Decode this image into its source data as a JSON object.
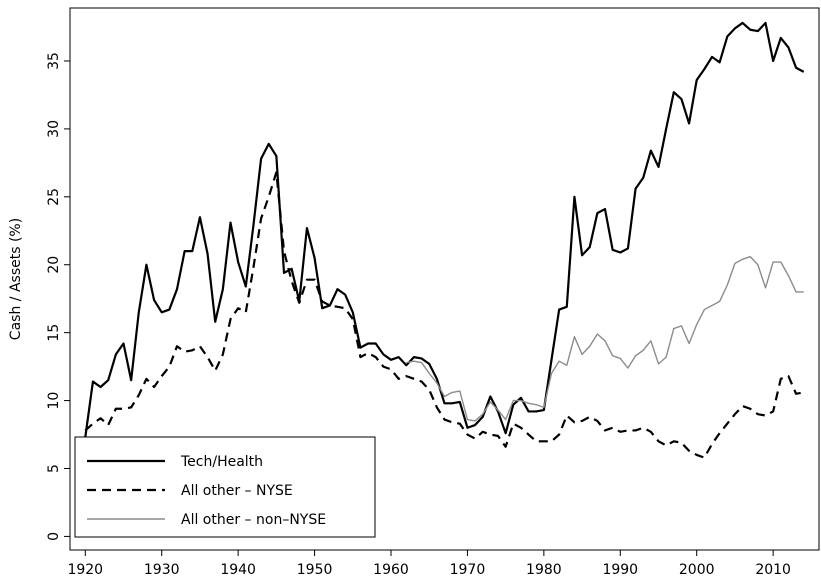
{
  "chart_data": {
    "type": "line",
    "y_label": "Cash / Assets (%)",
    "x": [
      1920,
      1921,
      1922,
      1923,
      1924,
      1925,
      1926,
      1927,
      1928,
      1929,
      1930,
      1931,
      1932,
      1933,
      1934,
      1935,
      1936,
      1937,
      1938,
      1939,
      1940,
      1941,
      1942,
      1943,
      1944,
      1945,
      1946,
      1947,
      1948,
      1949,
      1950,
      1951,
      1952,
      1953,
      1954,
      1955,
      1956,
      1957,
      1958,
      1959,
      1960,
      1961,
      1962,
      1963,
      1964,
      1965,
      1966,
      1967,
      1968,
      1969,
      1970,
      1971,
      1972,
      1973,
      1974,
      1975,
      1976,
      1977,
      1978,
      1979,
      1980,
      1981,
      1982,
      1983,
      1984,
      1985,
      1986,
      1987,
      1988,
      1989,
      1990,
      1991,
      1992,
      1993,
      1994,
      1995,
      1996,
      1997,
      1998,
      1999,
      2000,
      2001,
      2002,
      2003,
      2004,
      2005,
      2006,
      2007,
      2008,
      2009,
      2010,
      2011,
      2012,
      2013,
      2014
    ],
    "series": [
      {
        "name": "Tech/Health",
        "color": "#000000",
        "dash": "solid",
        "width": 2.2,
        "values": [
          7.3,
          11.4,
          11.0,
          11.5,
          13.4,
          14.2,
          11.5,
          16.5,
          20.0,
          17.4,
          16.5,
          16.7,
          18.2,
          21.0,
          21.0,
          23.5,
          20.8,
          15.8,
          18.2,
          23.1,
          20.2,
          18.4,
          22.9,
          27.8,
          28.9,
          28.0,
          19.4,
          19.7,
          17.3,
          22.7,
          20.5,
          16.8,
          17.0,
          18.2,
          17.8,
          16.5,
          13.9,
          14.2,
          14.2,
          13.4,
          13.0,
          13.2,
          12.6,
          13.2,
          13.1,
          12.7,
          11.6,
          9.8,
          9.8,
          9.9,
          8.0,
          8.2,
          8.8,
          10.3,
          9.2,
          7.6,
          9.7,
          10.2,
          9.2,
          9.2,
          9.3,
          13.0,
          16.7,
          16.9,
          25.0,
          20.7,
          21.3,
          23.8,
          24.1,
          21.1,
          20.9,
          21.2,
          25.6,
          26.4,
          28.4,
          27.2,
          30.0,
          32.7,
          32.2,
          30.4,
          33.6,
          34.4,
          35.3,
          34.9,
          36.8,
          37.4,
          37.8,
          37.3,
          37.2,
          37.8,
          35.0,
          36.7,
          36.0,
          34.5,
          34.2
        ]
      },
      {
        "name": "All other – NYSE",
        "color": "#000000",
        "dash": "dashed",
        "width": 2.2,
        "values": [
          7.8,
          8.3,
          8.7,
          8.2,
          9.4,
          9.4,
          9.5,
          10.4,
          11.6,
          11.0,
          11.8,
          12.5,
          14.0,
          13.6,
          13.7,
          14.0,
          13.2,
          12.2,
          13.4,
          16.0,
          16.8,
          16.5,
          19.8,
          23.4,
          25.0,
          26.8,
          21.0,
          18.8,
          17.2,
          18.9,
          18.9,
          17.3,
          17.0,
          16.9,
          16.8,
          16.0,
          13.2,
          13.5,
          13.2,
          12.5,
          12.3,
          11.6,
          11.8,
          11.6,
          11.4,
          10.8,
          9.5,
          8.6,
          8.4,
          8.3,
          7.5,
          7.2,
          7.7,
          7.5,
          7.4,
          6.6,
          8.3,
          8.0,
          7.5,
          7.0,
          7.0,
          7.0,
          7.5,
          8.9,
          8.4,
          8.5,
          8.8,
          8.5,
          7.8,
          8.0,
          7.7,
          7.8,
          7.8,
          8.0,
          7.7,
          7.0,
          6.7,
          7.0,
          6.9,
          6.3,
          6.0,
          5.8,
          6.8,
          7.6,
          8.3,
          9.0,
          9.6,
          9.4,
          9.0,
          8.9,
          9.2,
          11.6,
          11.8,
          10.5,
          10.6
        ]
      },
      {
        "name": "All other – non–NYSE",
        "color": "#8c8c8c",
        "dash": "solid",
        "width": 1.4,
        "values": [
          null,
          null,
          null,
          null,
          null,
          null,
          null,
          null,
          null,
          null,
          null,
          null,
          null,
          null,
          null,
          null,
          null,
          null,
          null,
          null,
          null,
          null,
          null,
          null,
          null,
          null,
          null,
          null,
          null,
          null,
          null,
          null,
          null,
          null,
          null,
          null,
          null,
          null,
          null,
          null,
          null,
          null,
          12.8,
          12.9,
          12.8,
          12.0,
          11.3,
          10.3,
          10.6,
          10.7,
          8.6,
          8.5,
          9.0,
          9.9,
          9.3,
          8.6,
          10.0,
          10.0,
          9.8,
          9.7,
          9.5,
          12.0,
          12.9,
          12.6,
          14.7,
          13.4,
          14.0,
          14.9,
          14.4,
          13.3,
          13.1,
          12.4,
          13.3,
          13.7,
          14.4,
          12.7,
          13.2,
          15.3,
          15.5,
          14.2,
          15.6,
          16.7,
          17.0,
          17.3,
          18.5,
          20.1,
          20.4,
          20.6,
          20.0,
          18.3,
          20.2,
          20.2,
          19.2,
          18.0,
          18.0
        ]
      }
    ],
    "xlim": [
      1918,
      2016
    ],
    "xticks": [
      1920,
      1930,
      1940,
      1950,
      1960,
      1970,
      1980,
      1990,
      2000,
      2010
    ],
    "ylim": [
      -1,
      38.9
    ],
    "yticks": [
      0,
      5,
      10,
      15,
      20,
      25,
      30,
      35
    ],
    "legend": "lower left"
  }
}
